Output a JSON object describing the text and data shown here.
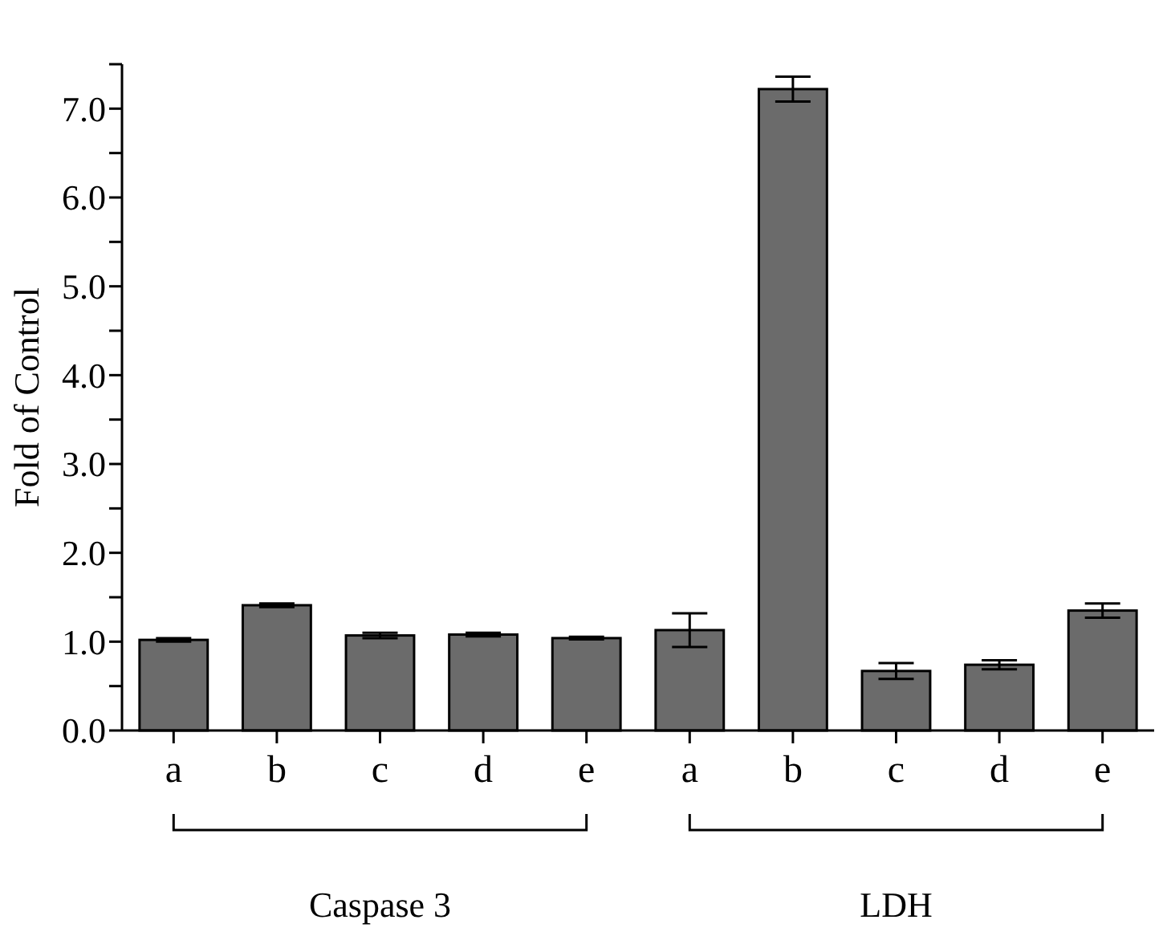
{
  "chart_data": {
    "type": "bar",
    "ylabel": "Fold of Control",
    "categories": [
      "a",
      "b",
      "c",
      "d",
      "e",
      "a",
      "b",
      "c",
      "d",
      "e"
    ],
    "values": [
      1.02,
      1.41,
      1.07,
      1.08,
      1.04,
      1.13,
      7.22,
      0.67,
      0.74,
      1.35
    ],
    "errors": [
      0.02,
      0.02,
      0.03,
      0.02,
      0.015,
      0.19,
      0.14,
      0.09,
      0.05,
      0.08
    ],
    "color": "#6b6b6b",
    "ylim": [
      0,
      7.5
    ],
    "yticks": [
      {
        "value": 0,
        "label": "0.0"
      },
      {
        "value": 0.5,
        "label": null
      },
      {
        "value": 1,
        "label": "1.0"
      },
      {
        "value": 1.5,
        "label": null
      },
      {
        "value": 2,
        "label": "2.0"
      },
      {
        "value": 2.5,
        "label": null
      },
      {
        "value": 3,
        "label": "3.0"
      },
      {
        "value": 3.5,
        "label": null
      },
      {
        "value": 4,
        "label": "4.0"
      },
      {
        "value": 4.5,
        "label": null
      },
      {
        "value": 5,
        "label": "5.0"
      },
      {
        "value": 5.5,
        "label": null
      },
      {
        "value": 6,
        "label": "6.0"
      },
      {
        "value": 6.5,
        "label": null
      },
      {
        "value": 7,
        "label": "7.0"
      },
      {
        "value": 7.5,
        "label": null
      }
    ],
    "annotations": [
      "Caspase 3",
      "LDH"
    ],
    "grid": false
  }
}
